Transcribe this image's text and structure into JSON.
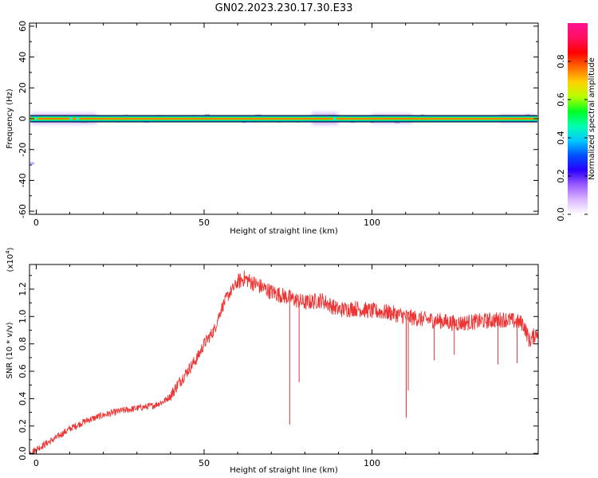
{
  "figure": {
    "title": "GN02.2023.230.17.30.E33"
  },
  "chart_data": [
    {
      "type": "heatmap",
      "name": "spectrogram",
      "xlabel": "Height of straight line (km)",
      "ylabel": "Frequency (Hz)",
      "xlim": [
        -2,
        149.5
      ],
      "ylim": [
        -62,
        62
      ],
      "x_ticks": [
        0,
        50,
        100
      ],
      "x_tick_labels": [
        "0",
        "50",
        "100"
      ],
      "y_ticks": [
        -60,
        -40,
        -20,
        0,
        20,
        40,
        60
      ],
      "y_tick_labels": [
        "-60",
        "-40",
        "-20",
        "0",
        "20",
        "40",
        "60"
      ],
      "grid": false,
      "band": {
        "center_frequency": 0,
        "color_scale_note": "peak amplitude near 0 Hz along full height range",
        "features": [
          {
            "x": [
              -1.5,
              18
            ],
            "half_width_hz": 3.5
          },
          {
            "x": [
              82,
              90
            ],
            "half_width_hz": 4
          },
          {
            "x": [
              100,
              112
            ],
            "half_width_hz": 3
          },
          {
            "x": [
              138,
              149
            ],
            "half_width_hz": 2.5
          }
        ],
        "outlier": {
          "x": -1.2,
          "frequency": -29
        }
      },
      "colorbar": {
        "label": "Normalized spectral amplitude",
        "range": [
          0,
          1
        ],
        "ticks": [
          0.0,
          0.2,
          0.4,
          0.6,
          0.8
        ],
        "tick_labels": [
          "0.0",
          "0.2",
          "0.4",
          "0.6",
          "0.8"
        ],
        "colors": [
          "#ffffff",
          "#d9b6ff",
          "#9b5cff",
          "#2a00ff",
          "#0050ff",
          "#00c8ff",
          "#00ffb0",
          "#00ff20",
          "#b8ff00",
          "#ffd000",
          "#ff6a00",
          "#ff0000",
          "#ff1060",
          "#ff1090"
        ]
      }
    },
    {
      "type": "line",
      "name": "snr",
      "xlabel": "Height of straight line (km)",
      "ylabel": "SNR (10 * v/v)",
      "y_scale_note": "(x10",
      "y_scale_exp": "4",
      "y_scale_close": ")",
      "xlim": [
        -2,
        149.5
      ],
      "ylim": [
        -0.005,
        1.38
      ],
      "x_ticks": [
        0,
        50,
        100
      ],
      "x_tick_labels": [
        "0",
        "50",
        "100"
      ],
      "y_ticks": [
        0.0,
        0.2,
        0.4,
        0.6,
        0.8,
        1.0,
        1.2
      ],
      "y_tick_labels": [
        "0.0",
        "0.2",
        "0.4",
        "0.6",
        "0.8",
        "1.0",
        "1.2"
      ],
      "grid": false,
      "line_color": "#ee3333",
      "series": [
        {
          "x": [
            -2,
            0,
            5,
            10,
            15,
            20,
            25,
            30,
            35,
            38,
            40,
            42,
            45,
            48,
            50,
            53,
            55,
            57,
            60,
            62,
            65,
            70,
            75,
            80,
            85,
            90,
            95,
            100,
            105,
            110,
            115,
            120,
            125,
            130,
            135,
            140,
            145,
            147,
            149.5
          ],
          "y": [
            0.0,
            0.03,
            0.1,
            0.18,
            0.24,
            0.28,
            0.31,
            0.33,
            0.35,
            0.38,
            0.42,
            0.5,
            0.6,
            0.7,
            0.8,
            0.9,
            1.05,
            1.15,
            1.25,
            1.28,
            1.24,
            1.18,
            1.14,
            1.1,
            1.12,
            1.05,
            1.06,
            1.04,
            1.03,
            1.0,
            0.98,
            0.97,
            0.95,
            0.96,
            0.97,
            0.98,
            0.95,
            0.82,
            0.9
          ]
        }
      ],
      "dips": [
        {
          "x": 75.5,
          "y": 0.21
        },
        {
          "x": 78.3,
          "y": 0.52
        },
        {
          "x": 110.2,
          "y": 0.26
        },
        {
          "x": 110.8,
          "y": 0.46
        },
        {
          "x": 118.5,
          "y": 0.68
        },
        {
          "x": 124.5,
          "y": 0.72
        },
        {
          "x": 137.5,
          "y": 0.65
        },
        {
          "x": 143.2,
          "y": 0.66
        }
      ]
    }
  ]
}
